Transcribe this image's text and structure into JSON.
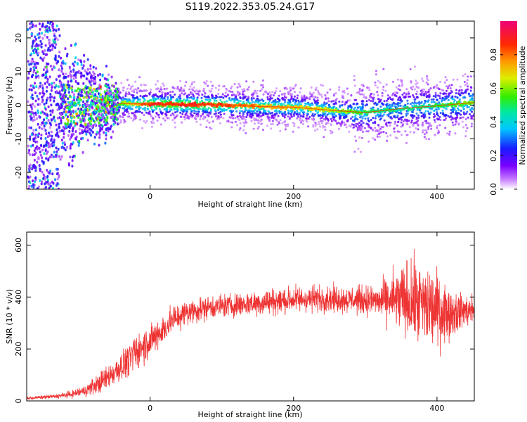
{
  "title": "S119.2022.353.05.24.G17",
  "colors": {
    "trace": "#ee3333",
    "axis": "#000000",
    "background": "#ffffff"
  },
  "chart_data": [
    {
      "type": "heatmap",
      "xlabel": "Height of straight line (km)",
      "ylabel": "Frequency (Hz)",
      "xlim": [
        -172,
        452
      ],
      "ylim": [
        -25,
        25
      ],
      "xticks": [
        0,
        200,
        400
      ],
      "yticks": [
        -20,
        -10,
        0,
        10,
        20
      ],
      "grid": false,
      "colorbar": {
        "label": "Normalized spectral amplitude",
        "range": [
          0.0,
          1.0
        ],
        "ticks": [
          0.0,
          0.2,
          0.4,
          0.6,
          0.8
        ],
        "colormap": "rainbow (white-violet-blue-cyan-green-yellow-red-magenta)"
      },
      "ridge": {
        "description": "Dominant spectral peak line near 0 Hz",
        "x": [
          -45,
          0,
          50,
          100,
          150,
          200,
          250,
          300,
          350,
          400,
          452
        ],
        "frequency": [
          0.5,
          0.3,
          0.2,
          0.1,
          -0.4,
          -0.6,
          -1.5,
          -2.2,
          -1.0,
          -0.2,
          0.8
        ],
        "peak_amplitude": [
          0.6,
          0.95,
          0.95,
          0.9,
          0.8,
          0.75,
          0.7,
          0.55,
          0.5,
          0.55,
          0.65
        ]
      },
      "noisy_region": {
        "x_range": [
          -172,
          -45
        ],
        "frequency_spread": [
          -25,
          25
        ]
      }
    },
    {
      "type": "line",
      "xlabel": "Height of straight line (km)",
      "ylabel": "SNR (10 * v/v)",
      "xlim": [
        -172,
        452
      ],
      "ylim": [
        0,
        650
      ],
      "xticks": [
        0,
        200,
        400
      ],
      "yticks": [
        0,
        200,
        400,
        600
      ],
      "grid": false,
      "series": [
        {
          "x": [
            -172,
            -150,
            -130,
            -110,
            -90,
            -70,
            -50,
            -30,
            -10,
            10,
            30,
            50,
            80,
            120,
            160,
            200,
            240,
            280,
            320,
            350,
            380,
            400,
            420,
            452
          ],
          "values": [
            10,
            14,
            18,
            25,
            40,
            70,
            110,
            160,
            210,
            250,
            310,
            340,
            360,
            370,
            380,
            390,
            395,
            390,
            385,
            390,
            370,
            350,
            340,
            350
          ],
          "spread": [
            5,
            6,
            8,
            12,
            20,
            35,
            45,
            55,
            60,
            55,
            50,
            45,
            40,
            40,
            45,
            45,
            45,
            45,
            55,
            120,
            150,
            130,
            80,
            40
          ]
        }
      ]
    }
  ]
}
